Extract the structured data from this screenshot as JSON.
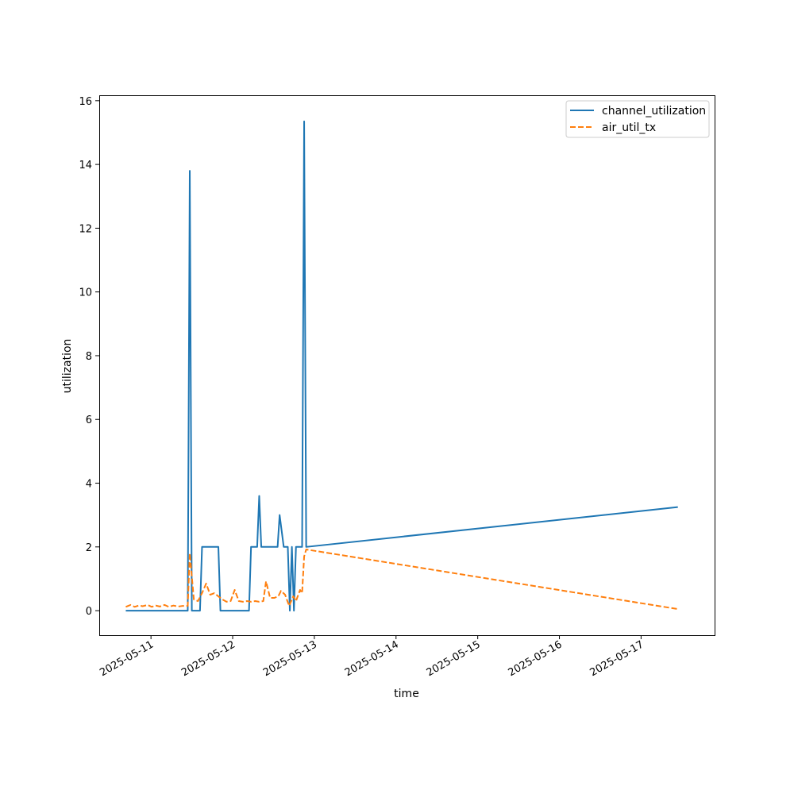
{
  "chart_data": {
    "type": "line",
    "title": "",
    "xlabel": "time",
    "ylabel": "utilization",
    "x_type": "datetime",
    "xlim": [
      "2025-05-10T08:48",
      "2025-05-17T21:36"
    ],
    "ylim": [
      -0.77,
      16.17
    ],
    "x_ticks": [
      "2025-05-11",
      "2025-05-12",
      "2025-05-13",
      "2025-05-14",
      "2025-05-15",
      "2025-05-16",
      "2025-05-17"
    ],
    "y_ticks": [
      0,
      2,
      4,
      6,
      8,
      10,
      12,
      14,
      16
    ],
    "grid": false,
    "legend_position": "top-right",
    "series": [
      {
        "name": "channel_utilization",
        "color": "#1f77b4",
        "style": "solid",
        "points": [
          [
            "2025-05-10T16:36",
            0.0
          ],
          [
            "2025-05-11T10:48",
            0.0
          ],
          [
            "2025-05-11T11:24",
            13.8
          ],
          [
            "2025-05-11T12:00",
            0.0
          ],
          [
            "2025-05-11T14:24",
            0.0
          ],
          [
            "2025-05-11T15:00",
            2.0
          ],
          [
            "2025-05-11T19:48",
            2.0
          ],
          [
            "2025-05-11T20:24",
            0.0
          ],
          [
            "2025-05-12T04:48",
            0.0
          ],
          [
            "2025-05-12T05:24",
            2.0
          ],
          [
            "2025-05-12T07:12",
            2.0
          ],
          [
            "2025-05-12T07:48",
            3.6
          ],
          [
            "2025-05-12T08:24",
            2.0
          ],
          [
            "2025-05-12T13:12",
            2.0
          ],
          [
            "2025-05-12T13:48",
            3.0
          ],
          [
            "2025-05-12T15:00",
            2.0
          ],
          [
            "2025-05-12T16:12",
            2.0
          ],
          [
            "2025-05-12T16:48",
            0.0
          ],
          [
            "2025-05-12T17:24",
            2.0
          ],
          [
            "2025-05-12T18:00",
            0.0
          ],
          [
            "2025-05-12T18:36",
            2.0
          ],
          [
            "2025-05-12T20:24",
            2.0
          ],
          [
            "2025-05-12T21:00",
            15.35
          ],
          [
            "2025-05-12T21:36",
            2.0
          ],
          [
            "2025-05-17T10:48",
            3.25
          ]
        ]
      },
      {
        "name": "air_util_tx",
        "color": "#ff7f0e",
        "style": "dashed",
        "points": [
          [
            "2025-05-10T16:36",
            0.12
          ],
          [
            "2025-05-10T18:00",
            0.18
          ],
          [
            "2025-05-10T19:12",
            0.12
          ],
          [
            "2025-05-10T20:24",
            0.16
          ],
          [
            "2025-05-10T21:36",
            0.14
          ],
          [
            "2025-05-10T23:00",
            0.18
          ],
          [
            "2025-05-11T00:12",
            0.12
          ],
          [
            "2025-05-11T01:24",
            0.16
          ],
          [
            "2025-05-11T02:36",
            0.13
          ],
          [
            "2025-05-11T04:00",
            0.18
          ],
          [
            "2025-05-11T05:12",
            0.12
          ],
          [
            "2025-05-11T06:36",
            0.16
          ],
          [
            "2025-05-11T08:00",
            0.13
          ],
          [
            "2025-05-11T09:24",
            0.15
          ],
          [
            "2025-05-11T10:48",
            0.15
          ],
          [
            "2025-05-11T11:24",
            1.8
          ],
          [
            "2025-05-11T12:36",
            0.35
          ],
          [
            "2025-05-11T13:48",
            0.3
          ],
          [
            "2025-05-11T15:00",
            0.55
          ],
          [
            "2025-05-11T16:12",
            0.85
          ],
          [
            "2025-05-11T17:24",
            0.5
          ],
          [
            "2025-05-11T18:36",
            0.55
          ],
          [
            "2025-05-11T19:48",
            0.45
          ],
          [
            "2025-05-11T21:00",
            0.35
          ],
          [
            "2025-05-11T22:12",
            0.28
          ],
          [
            "2025-05-11T23:24",
            0.3
          ],
          [
            "2025-05-12T00:36",
            0.65
          ],
          [
            "2025-05-12T01:48",
            0.3
          ],
          [
            "2025-05-12T03:00",
            0.28
          ],
          [
            "2025-05-12T04:12",
            0.3
          ],
          [
            "2025-05-12T05:24",
            0.28
          ],
          [
            "2025-05-12T06:36",
            0.3
          ],
          [
            "2025-05-12T07:48",
            0.28
          ],
          [
            "2025-05-12T09:00",
            0.3
          ],
          [
            "2025-05-12T09:48",
            0.92
          ],
          [
            "2025-05-12T11:00",
            0.4
          ],
          [
            "2025-05-12T12:12",
            0.4
          ],
          [
            "2025-05-12T13:24",
            0.45
          ],
          [
            "2025-05-12T14:12",
            0.62
          ],
          [
            "2025-05-12T15:24",
            0.5
          ],
          [
            "2025-05-12T16:36",
            0.15
          ],
          [
            "2025-05-12T17:48",
            0.45
          ],
          [
            "2025-05-12T18:36",
            0.3
          ],
          [
            "2025-05-12T19:48",
            0.65
          ],
          [
            "2025-05-12T20:24",
            0.55
          ],
          [
            "2025-05-12T21:00",
            1.7
          ],
          [
            "2025-05-12T21:36",
            1.92
          ],
          [
            "2025-05-17T10:48",
            0.05
          ]
        ]
      }
    ]
  }
}
